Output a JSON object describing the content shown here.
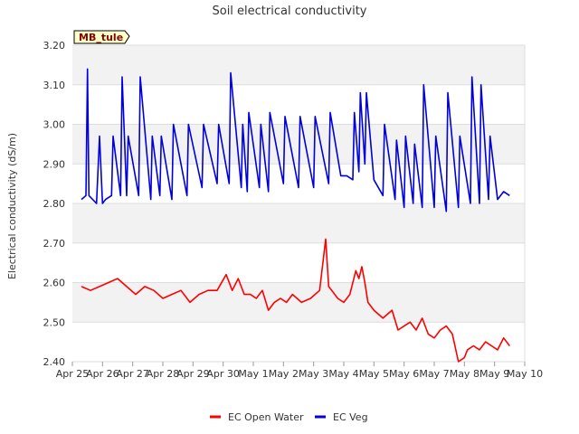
{
  "chart_data": {
    "type": "line",
    "title": "Soil electrical conductivity",
    "ylabel": "Electrical conductivity (dS/m)",
    "xlabel": "",
    "site_badge": "MB_tule",
    "ylim": [
      2.4,
      3.2
    ],
    "yticks": [
      "2.40",
      "2.50",
      "2.60",
      "2.70",
      "2.80",
      "2.90",
      "3.00",
      "3.10",
      "3.20"
    ],
    "xlim": [
      0,
      15
    ],
    "xticks": [
      "Apr 25",
      "Apr 26",
      "Apr 27",
      "Apr 28",
      "Apr 29",
      "Apr 30",
      "May 1",
      "May 2",
      "May 3",
      "May 4",
      "May 5",
      "May 6",
      "May 7",
      "May 8",
      "May 9",
      "May 10"
    ],
    "grid": true,
    "legend": "bottom",
    "series": [
      {
        "name": "EC Open Water",
        "color": "#ff0000",
        "x": [
          0.3,
          0.6,
          0.9,
          1.2,
          1.5,
          1.8,
          2.1,
          2.4,
          2.7,
          3.0,
          3.3,
          3.6,
          3.9,
          4.2,
          4.5,
          4.8,
          5.1,
          5.3,
          5.5,
          5.7,
          5.9,
          6.1,
          6.3,
          6.5,
          6.7,
          6.9,
          7.1,
          7.3,
          7.6,
          7.9,
          8.2,
          8.4,
          8.5,
          8.6,
          8.8,
          9.0,
          9.2,
          9.4,
          9.5,
          9.6,
          9.7,
          9.8,
          10.0,
          10.3,
          10.6,
          10.8,
          11.0,
          11.2,
          11.4,
          11.6,
          11.8,
          12.0,
          12.2,
          12.4,
          12.6,
          12.8,
          13.0,
          13.1,
          13.3,
          13.5,
          13.7,
          13.9,
          14.1,
          14.3,
          14.5
        ],
        "values": [
          2.59,
          2.58,
          2.59,
          2.6,
          2.61,
          2.59,
          2.57,
          2.59,
          2.58,
          2.56,
          2.57,
          2.58,
          2.55,
          2.57,
          2.58,
          2.58,
          2.62,
          2.58,
          2.61,
          2.57,
          2.57,
          2.56,
          2.58,
          2.53,
          2.55,
          2.56,
          2.55,
          2.57,
          2.55,
          2.56,
          2.58,
          2.71,
          2.59,
          2.58,
          2.56,
          2.55,
          2.57,
          2.63,
          2.61,
          2.64,
          2.6,
          2.55,
          2.53,
          2.51,
          2.53,
          2.48,
          2.49,
          2.5,
          2.48,
          2.51,
          2.47,
          2.46,
          2.48,
          2.49,
          2.47,
          2.4,
          2.41,
          2.43,
          2.44,
          2.43,
          2.45,
          2.44,
          2.43,
          2.46,
          2.44
        ]
      },
      {
        "name": "EC Veg",
        "color": "#0000dd",
        "x": [
          0.3,
          0.45,
          0.5,
          0.55,
          0.8,
          0.9,
          1.0,
          1.1,
          1.3,
          1.35,
          1.6,
          1.65,
          1.8,
          1.85,
          2.2,
          2.25,
          2.6,
          2.65,
          2.9,
          2.95,
          3.3,
          3.35,
          3.8,
          3.85,
          4.3,
          4.35,
          4.8,
          4.85,
          5.2,
          5.25,
          5.6,
          5.65,
          5.8,
          5.85,
          6.2,
          6.25,
          6.5,
          6.55,
          7.0,
          7.05,
          7.5,
          7.55,
          8.0,
          8.05,
          8.5,
          8.55,
          8.9,
          9.1,
          9.3,
          9.35,
          9.5,
          9.55,
          9.7,
          9.75,
          10.0,
          10.3,
          10.35,
          10.7,
          10.75,
          11.0,
          11.05,
          11.3,
          11.35,
          11.6,
          11.65,
          12.0,
          12.05,
          12.4,
          12.45,
          12.8,
          12.85,
          13.2,
          13.25,
          13.5,
          13.55,
          13.8,
          13.85,
          14.1,
          14.3,
          14.5
        ],
        "values": [
          2.81,
          2.82,
          3.14,
          2.82,
          2.8,
          2.97,
          2.8,
          2.81,
          2.82,
          2.97,
          2.82,
          3.12,
          2.82,
          2.97,
          2.82,
          3.12,
          2.81,
          2.97,
          2.82,
          2.97,
          2.81,
          3.0,
          2.82,
          3.0,
          2.84,
          3.0,
          2.85,
          3.0,
          2.85,
          3.13,
          2.84,
          3.0,
          2.83,
          3.03,
          2.84,
          3.0,
          2.83,
          3.03,
          2.85,
          3.02,
          2.84,
          3.02,
          2.84,
          3.02,
          2.85,
          3.03,
          2.87,
          2.87,
          2.86,
          3.03,
          2.88,
          3.08,
          2.9,
          3.08,
          2.86,
          2.82,
          3.0,
          2.81,
          2.96,
          2.79,
          2.97,
          2.8,
          2.95,
          2.79,
          3.1,
          2.79,
          2.97,
          2.78,
          3.08,
          2.79,
          2.97,
          2.8,
          3.12,
          2.8,
          3.1,
          2.81,
          2.97,
          2.81,
          2.83,
          2.82
        ]
      }
    ]
  }
}
